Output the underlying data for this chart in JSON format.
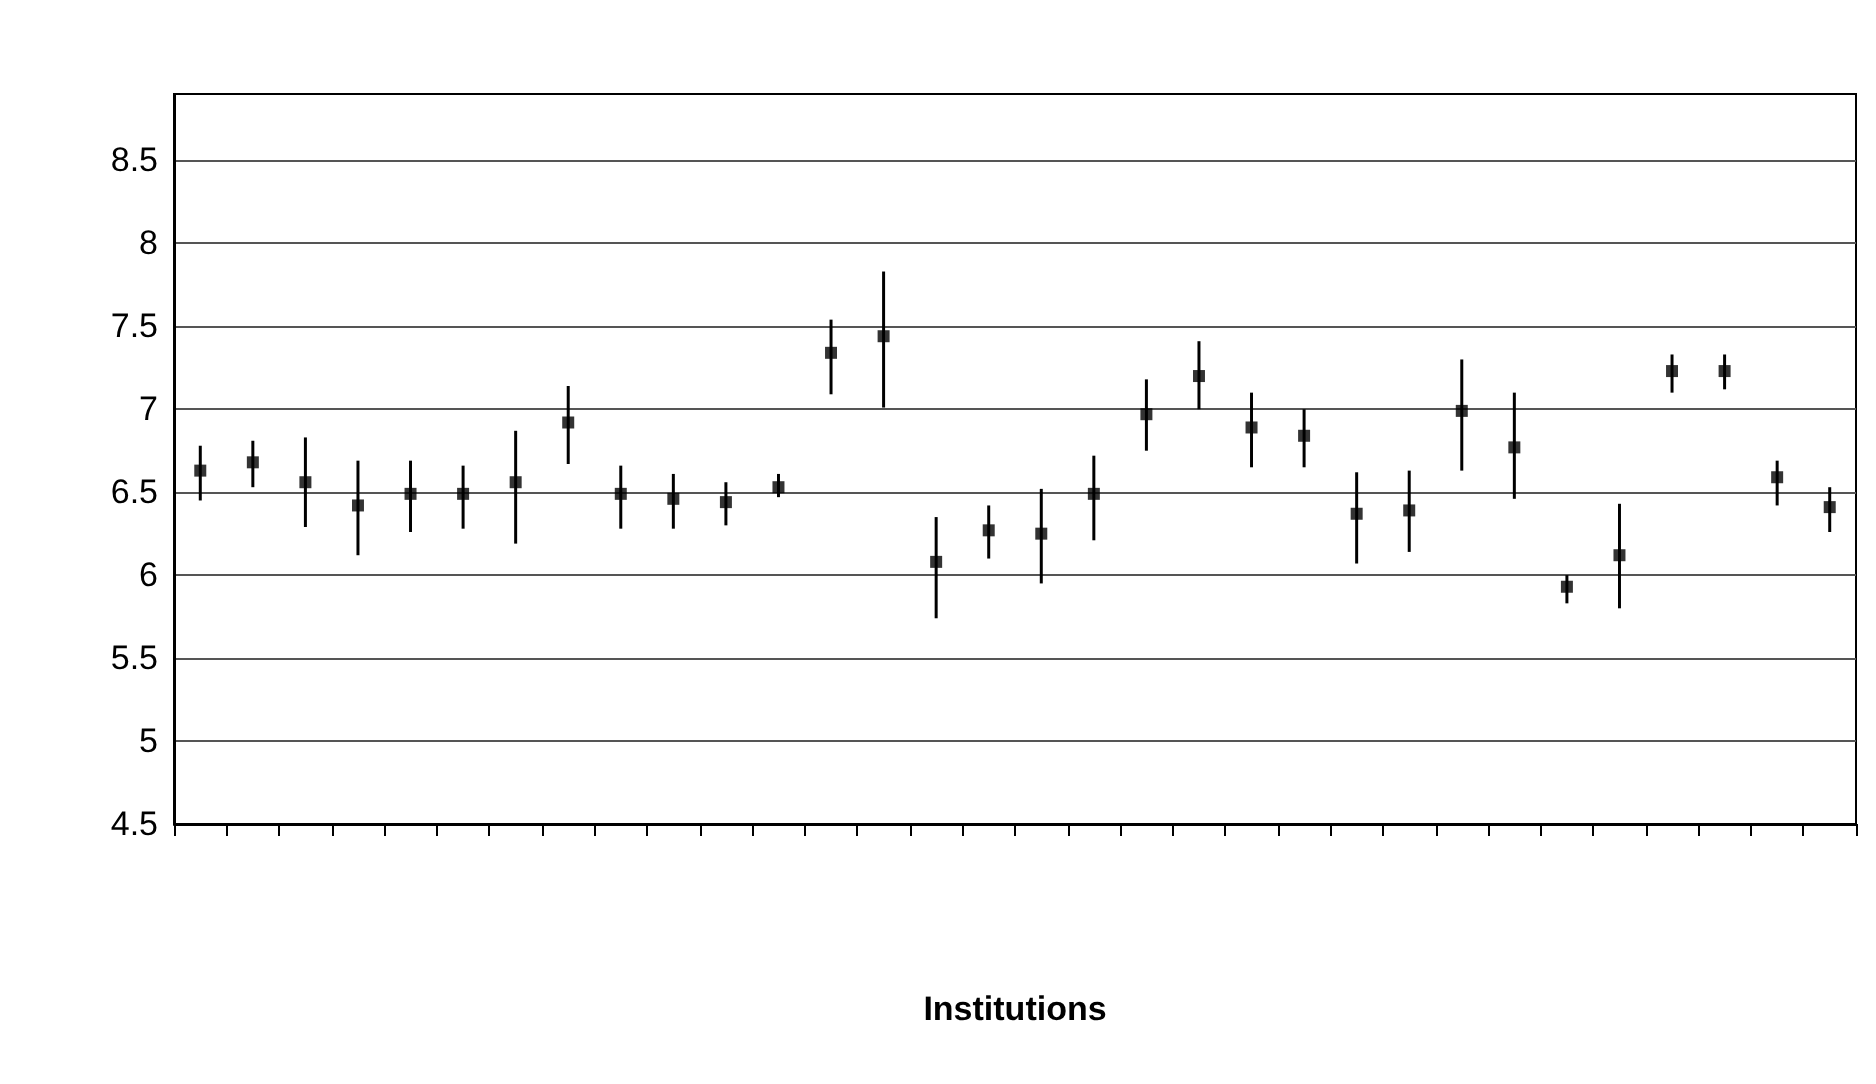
{
  "chart_data": {
    "type": "scatter",
    "xlabel": "Institutions",
    "categories": [
      null,
      null,
      null,
      null,
      null,
      null,
      null,
      null,
      null,
      null,
      null,
      null,
      null,
      null,
      null,
      null,
      null,
      null,
      null,
      null,
      null,
      null,
      null,
      null,
      null,
      null,
      null,
      null,
      null,
      null,
      null,
      null
    ],
    "series": [
      {
        "color": "#000000",
        "values": [
          6.63,
          6.68,
          6.56,
          6.42,
          6.49,
          6.49,
          6.56,
          6.92,
          6.49,
          6.46,
          6.44,
          6.53,
          7.34,
          7.44,
          6.08,
          6.27,
          6.25,
          6.49,
          6.97,
          7.2,
          6.89,
          6.84,
          6.37,
          6.39,
          6.99,
          6.77,
          5.93,
          6.12,
          7.23,
          7.23,
          6.59,
          6.41
        ],
        "errors": [
          [
            6.45,
            6.78
          ],
          [
            6.53,
            6.81
          ],
          [
            6.29,
            6.83
          ],
          [
            6.12,
            6.69
          ],
          [
            6.26,
            6.69
          ],
          [
            6.28,
            6.66
          ],
          [
            6.19,
            6.87
          ],
          [
            6.67,
            7.14
          ],
          [
            6.28,
            6.66
          ],
          [
            6.28,
            6.61
          ],
          [
            6.3,
            6.56
          ],
          [
            6.47,
            6.61
          ],
          [
            7.09,
            7.54
          ],
          [
            7.01,
            7.83
          ],
          [
            5.74,
            6.35
          ],
          [
            6.1,
            6.42
          ],
          [
            5.95,
            6.52
          ],
          [
            6.21,
            6.72
          ],
          [
            6.75,
            7.18
          ],
          [
            7.0,
            7.41
          ],
          [
            6.65,
            7.1
          ],
          [
            6.65,
            7.0
          ],
          [
            6.07,
            6.62
          ],
          [
            6.14,
            6.63
          ],
          [
            6.63,
            7.3
          ],
          [
            6.46,
            7.1
          ],
          [
            5.83,
            6.0
          ],
          [
            5.8,
            6.43
          ],
          [
            7.1,
            7.33
          ],
          [
            7.12,
            7.33
          ],
          [
            6.42,
            6.69
          ],
          [
            6.26,
            6.53
          ]
        ]
      }
    ],
    "ylim": [
      4.5,
      8.9
    ],
    "yticks": [
      4.5,
      5,
      5.5,
      6,
      6.5,
      7,
      7.5,
      8,
      8.5
    ],
    "grid": "y",
    "marker": "square"
  }
}
